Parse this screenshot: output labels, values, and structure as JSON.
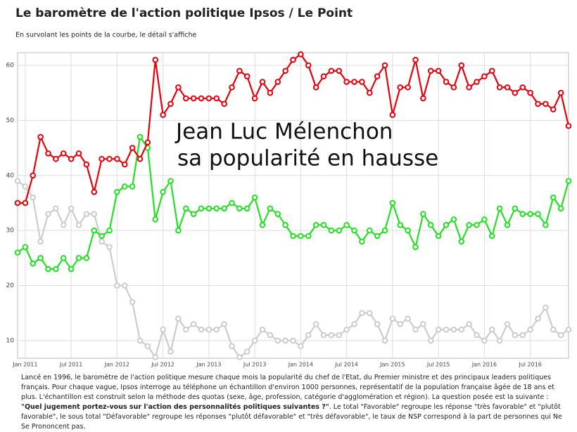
{
  "chart_data": {
    "type": "line",
    "title": "Le baromètre de l'action politique Ipsos / Le Point",
    "subtitle": "En survolant les points de la courbe, le détail s'affiche",
    "annotation": [
      "Jean Luc Mélenchon",
      "sa popularité en hausse"
    ],
    "x": [
      "2010-12",
      "2011-01",
      "2011-02",
      "2011-03",
      "2011-04",
      "2011-05",
      "2011-06",
      "2011-07",
      "2011-08",
      "2011-09",
      "2011-10",
      "2011-11",
      "2011-12",
      "2012-01",
      "2012-02",
      "2012-03",
      "2012-04",
      "2012-05",
      "2012-06",
      "2012-07",
      "2012-08",
      "2012-09",
      "2012-10",
      "2012-11",
      "2012-12",
      "2013-01",
      "2013-02",
      "2013-03",
      "2013-04",
      "2013-05",
      "2013-06",
      "2013-07",
      "2013-08",
      "2013-09",
      "2013-10",
      "2013-11",
      "2013-12",
      "2014-01",
      "2014-02",
      "2014-03",
      "2014-04",
      "2014-05",
      "2014-06",
      "2014-07",
      "2014-08",
      "2014-09",
      "2014-10",
      "2014-11",
      "2014-12",
      "2015-01",
      "2015-02",
      "2015-03",
      "2015-04",
      "2015-05",
      "2015-06",
      "2015-07",
      "2015-08",
      "2015-09",
      "2015-10",
      "2015-11",
      "2015-12",
      "2016-01",
      "2016-02",
      "2016-03",
      "2016-04",
      "2016-05",
      "2016-06",
      "2016-07",
      "2016-08",
      "2016-09",
      "2016-10",
      "2016-11",
      "2016-12"
    ],
    "series": [
      {
        "color": "#e8000b",
        "values": [
          35,
          35,
          40,
          47,
          44,
          43,
          44,
          43,
          44,
          42,
          37,
          43,
          43,
          43,
          42,
          45,
          43,
          46,
          61,
          51,
          53,
          56,
          54,
          54,
          54,
          54,
          54,
          53,
          56,
          59,
          58,
          54,
          57,
          55,
          57,
          59,
          61,
          62,
          60,
          56,
          58,
          59,
          59,
          57,
          57,
          57,
          55,
          58,
          60,
          51,
          56,
          56,
          61,
          54,
          59,
          59,
          57,
          56,
          60,
          56,
          57,
          58,
          59,
          56,
          56,
          55,
          56,
          55,
          53,
          53,
          52,
          55,
          49
        ]
      },
      {
        "color": "#22e022",
        "values": [
          26,
          27,
          24,
          25,
          23,
          23,
          25,
          23,
          25,
          25,
          30,
          29,
          30,
          37,
          38,
          38,
          47,
          45,
          32,
          37,
          39,
          30,
          34,
          33,
          34,
          34,
          34,
          34,
          35,
          34,
          34,
          36,
          31,
          34,
          33,
          31,
          29,
          29,
          29,
          31,
          31,
          30,
          30,
          31,
          30,
          28,
          30,
          29,
          30,
          35,
          31,
          30,
          27,
          33,
          31,
          29,
          31,
          32,
          28,
          31,
          31,
          32,
          29,
          34,
          31,
          34,
          33,
          33,
          33,
          31,
          36,
          34,
          39
        ]
      },
      {
        "color": "#cccccc",
        "values": [
          39,
          38,
          36,
          28,
          33,
          34,
          31,
          34,
          31,
          33,
          33,
          28,
          27,
          20,
          20,
          17,
          10,
          9,
          7,
          12,
          8,
          14,
          12,
          13,
          12,
          12,
          12,
          13,
          9,
          7,
          8,
          10,
          12,
          11,
          10,
          10,
          10,
          9,
          11,
          13,
          11,
          11,
          11,
          12,
          13,
          15,
          15,
          13,
          10,
          14,
          13,
          14,
          12,
          13,
          10,
          12,
          12,
          12,
          12,
          13,
          11,
          10,
          12,
          10,
          13,
          11,
          11,
          12,
          14,
          16,
          12,
          11,
          12
        ]
      }
    ],
    "xlim": [
      "2010-12",
      "2016-12"
    ],
    "xticks": [
      {
        "value": "2011-01",
        "label": "Jan 2011"
      },
      {
        "value": "2011-07",
        "label": "Jul 2011"
      },
      {
        "value": "2012-01",
        "label": "Jan 2012"
      },
      {
        "value": "2012-07",
        "label": "Jul 2012"
      },
      {
        "value": "2013-01",
        "label": "Jan 2013"
      },
      {
        "value": "2013-07",
        "label": "Jul 2013"
      },
      {
        "value": "2014-01",
        "label": "Jan 2014"
      },
      {
        "value": "2014-07",
        "label": "Jul 2014"
      },
      {
        "value": "2015-01",
        "label": "Jan 2015"
      },
      {
        "value": "2015-07",
        "label": "Jul 2015"
      },
      {
        "value": "2016-01",
        "label": "Jan 2016"
      },
      {
        "value": "2016-07",
        "label": "Jul 2016"
      }
    ],
    "ylim": [
      6.8,
      62.3
    ],
    "yticks": [
      10,
      20,
      30,
      40,
      50,
      60
    ],
    "grid": true,
    "footnote": [
      "Lancé en 1996, le baromètre de l'action politique mesure chaque mois la popularité du chef de l'Etat, du Premier ministre et des principaux leaders politiques français. Pour chaque vague, Ipsos interroge au téléphone un échantillon d'environ 1000 personnes, représentatif de la population française âgée de 18 ans et plus. L'échantillon est construit selon la méthode des quotas (sexe, âge, profession, catégorie d'agglomération et région). La question posée est la suivante : ",
      "\"Quel jugement portez-vous sur l'action des personnalités politiques suivantes ?\"",
      ". Le total \"Favorable\" regroupe les réponse \"très favorable\" et \"plutôt favorable\", le sous total \"Défavorable\" regroupe les réponses \"plutôt défavorable\" et \"très défavorable\", le taux de NSP correspond à la part de personnes qui Ne Se Prononcent pas."
    ]
  }
}
